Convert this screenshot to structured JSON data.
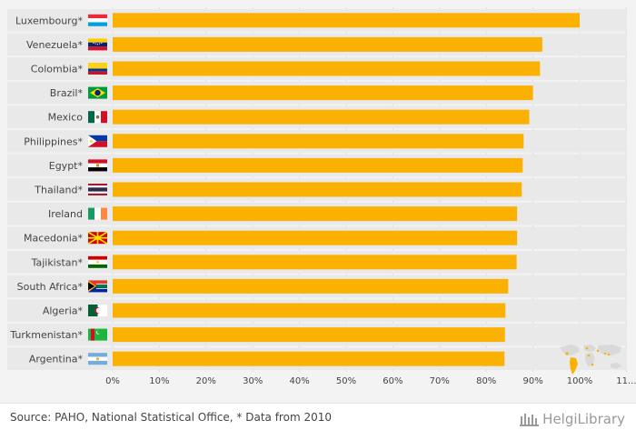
{
  "chart_data": {
    "type": "bar",
    "orientation": "horizontal",
    "categories": [
      "Luxembourg*",
      "Venezuela*",
      "Colombia*",
      "Brazil*",
      "Mexico",
      "Philippines*",
      "Egypt*",
      "Thailand*",
      "Ireland",
      "Macedonia*",
      "Tajikistan*",
      "South Africa*",
      "Algeria*",
      "Turkmenistan*",
      "Argentina*"
    ],
    "values": [
      100,
      92,
      91.5,
      90,
      89.2,
      88,
      87.8,
      87.6,
      86.6,
      86.6,
      86.5,
      84.7,
      84.1,
      84.0,
      83.9
    ],
    "xticks": [
      "0%",
      "10%",
      "20%",
      "30%",
      "40%",
      "50%",
      "60%",
      "70%",
      "80%",
      "90%",
      "100%",
      "11..."
    ],
    "xlim": [
      0,
      110
    ],
    "bar_color": "#fbb102",
    "grid": true,
    "legend": false
  },
  "flags": [
    "luxembourg-flag-icon",
    "venezuela-flag-icon",
    "colombia-flag-icon",
    "brazil-flag-icon",
    "mexico-flag-icon",
    "philippines-flag-icon",
    "egypt-flag-icon",
    "thailand-flag-icon",
    "ireland-flag-icon",
    "macedonia-flag-icon",
    "tajikistan-flag-icon",
    "south-africa-flag-icon",
    "algeria-flag-icon",
    "turkmenistan-flag-icon",
    "argentina-flag-icon"
  ],
  "footer": {
    "source": "Source: PAHO, National Statistical Office, * Data from 2010",
    "brand": "HelgiLibrary"
  }
}
